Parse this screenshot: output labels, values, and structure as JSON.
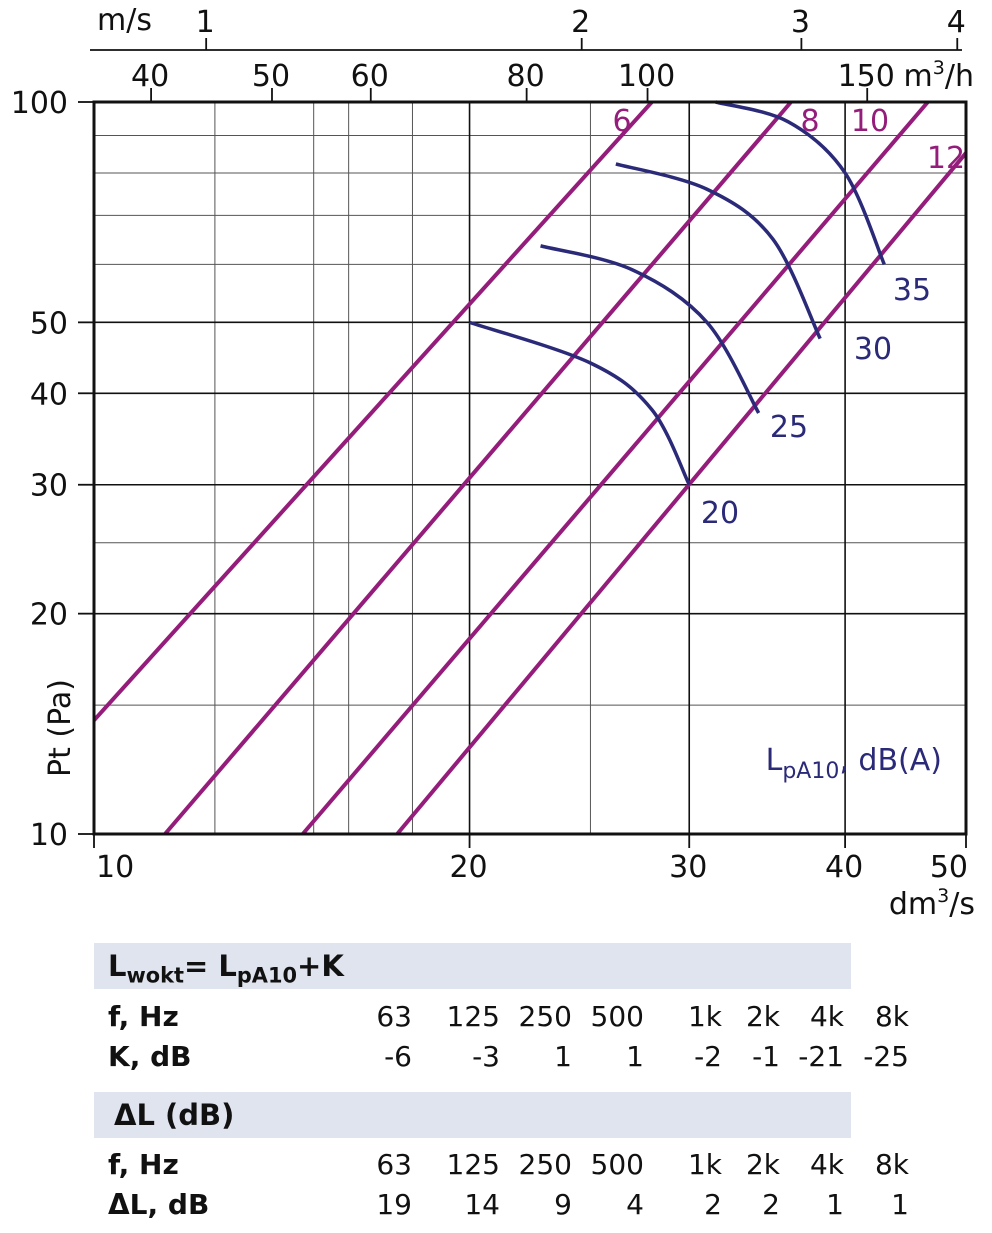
{
  "chart_data": {
    "type": "line",
    "x_axis": {
      "label_prefix": "dm",
      "label_sup": "3",
      "label_suffix": "/s",
      "scale": "log",
      "range": [
        10,
        50
      ],
      "ticks": [
        10,
        20,
        30,
        40,
        50
      ],
      "tick_labels": [
        "10",
        "20",
        "30",
        "40",
        "50"
      ],
      "minor_gridlines": [
        12.5,
        15,
        16,
        18,
        25
      ]
    },
    "y_axis": {
      "label": "Pt (Pa)",
      "scale": "log",
      "range": [
        10,
        100
      ],
      "ticks": [
        10,
        20,
        30,
        40,
        50,
        100
      ],
      "tick_labels": [
        "10",
        "20",
        "30",
        "40",
        "50",
        "100"
      ],
      "minor_gridlines": [
        15,
        25,
        60,
        70,
        80,
        90
      ]
    },
    "top_axis_flow": {
      "unit_prefix": "m",
      "unit_sup": "3",
      "unit_suffix": "/h",
      "ticks": [
        40,
        50,
        60,
        80,
        100,
        150
      ],
      "tick_labels": [
        "40",
        "50",
        "60",
        "80",
        "100",
        "150"
      ]
    },
    "top_axis_velocity": {
      "unit": "m/s",
      "ticks": [
        1,
        2,
        3,
        4
      ],
      "tick_labels": [
        "1",
        "2",
        "3",
        "4"
      ],
      "positions_dm3s": [
        12.3,
        24.6,
        36.9,
        49.2
      ]
    },
    "settings_lines": {
      "color": "#941c7a",
      "series": [
        {
          "name": "6",
          "points": [
            [
              10,
              14.3
            ],
            [
              28,
              100
            ]
          ]
        },
        {
          "name": "8",
          "points": [
            [
              11.4,
              10
            ],
            [
              36.2,
              100
            ]
          ]
        },
        {
          "name": "10",
          "points": [
            [
              14.7,
              10
            ],
            [
              46.6,
              100
            ]
          ]
        },
        {
          "name": "12",
          "points": [
            [
              17.5,
              10
            ],
            [
              50,
              85.2
            ]
          ]
        }
      ]
    },
    "noise_curves": {
      "color": "#2b2a78",
      "label": "L",
      "label_sub": "pA10",
      "label_suffix": ", dB(A)",
      "series": [
        {
          "name": "20",
          "points": [
            [
              20,
              50
            ],
            [
              25,
              44
            ],
            [
              28,
              38
            ],
            [
              30,
              30
            ]
          ]
        },
        {
          "name": "25",
          "points": [
            [
              22.8,
              63.6
            ],
            [
              27,
              59
            ],
            [
              31,
              50
            ],
            [
              34.1,
              37.6
            ]
          ]
        },
        {
          "name": "30",
          "points": [
            [
              26.2,
              82.3
            ],
            [
              31,
              76
            ],
            [
              35,
              65
            ],
            [
              38.2,
              47.5
            ]
          ]
        },
        {
          "name": "35",
          "points": [
            [
              31.5,
              100
            ],
            [
              36,
              94
            ],
            [
              40,
              80
            ],
            [
              43,
              60
            ]
          ]
        }
      ]
    },
    "grid": true,
    "legend": "none"
  },
  "tables": {
    "k_table": {
      "header_main": "L",
      "header_sub1": "wokt",
      "header_mid": "= L",
      "header_sub2": "pA10",
      "header_end": "+K",
      "freq_label": "f, Hz",
      "freqs": [
        "63",
        "125",
        "250",
        "500",
        "1k",
        "2k",
        "4k",
        "8k"
      ],
      "value_label": "K, dB",
      "values": [
        "-6",
        "-3",
        "1",
        "1",
        "-2",
        "-1",
        "-21",
        "-25"
      ]
    },
    "dl_table": {
      "header": "ΔL (dB)",
      "freq_label": "f, Hz",
      "freqs": [
        "63",
        "125",
        "250",
        "500",
        "1k",
        "2k",
        "4k",
        "8k"
      ],
      "value_label": "ΔL, dB",
      "values": [
        "19",
        "14",
        "9",
        "4",
        "2",
        "2",
        "1",
        "1"
      ]
    }
  }
}
